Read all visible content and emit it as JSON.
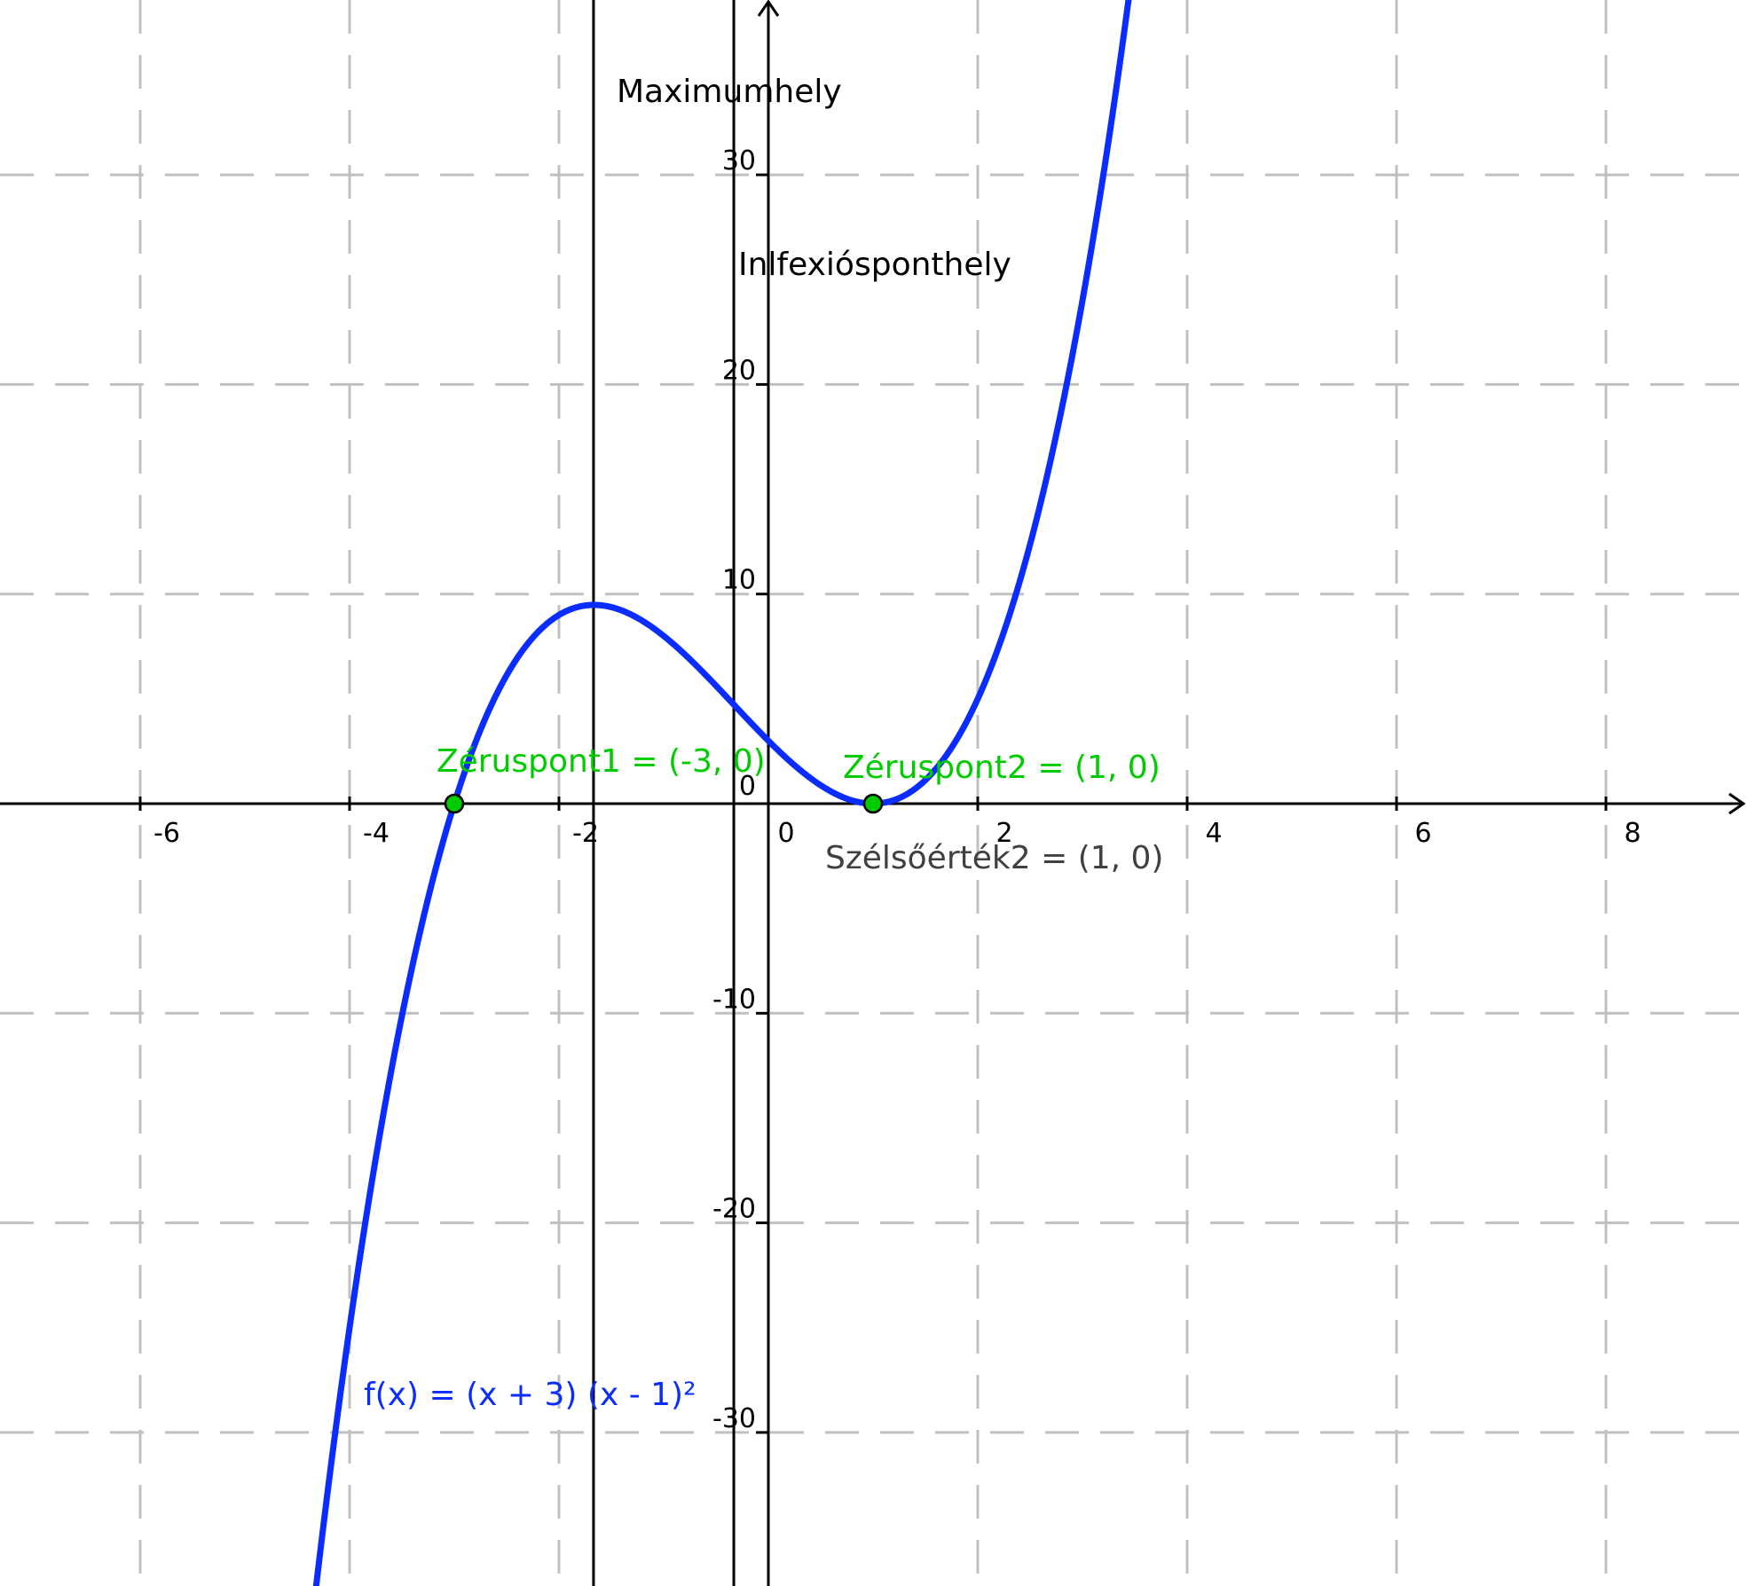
{
  "chart_data": {
    "type": "line",
    "title": "",
    "xlabel": "",
    "ylabel": "",
    "xlim": [
      -7.33,
      9.33
    ],
    "ylim": [
      -37.8,
      37.8
    ],
    "grid": true,
    "x_ticks": [
      -6,
      -4,
      -2,
      0,
      2,
      4,
      6,
      8
    ],
    "y_ticks": [
      -30,
      -20,
      -10,
      0,
      10,
      20,
      30
    ],
    "x_tick_labels": [
      "-6",
      "-4",
      "-2",
      "0",
      "2",
      "4",
      "6",
      "8"
    ],
    "y_tick_labels": [
      "-30",
      "-20",
      "-10",
      "0",
      "10",
      "20",
      "30"
    ],
    "function": {
      "label": "f(x) = (x + 3) (x - 1)²",
      "color": "#0a2cff",
      "x_range": [
        -4.33,
        3.45
      ],
      "sample_step": 0.02
    },
    "vertical_lines": [
      {
        "x": -1.67,
        "label": "Maximumhely",
        "color": "#000000"
      },
      {
        "x": -0.33,
        "label": "Inlfexiósponthely",
        "color": "#000000"
      }
    ],
    "points": [
      {
        "x": -3,
        "y": 0,
        "label": "Zéruspont1 = (-3, 0)",
        "color": "#00cc00"
      },
      {
        "x": 1,
        "y": 0,
        "label": "Zéruspont2 = (1, 0)",
        "color": "#00cc00"
      }
    ],
    "annotations": [
      {
        "text": "Szélsőérték2 = (1, 0)",
        "color": "#404040"
      }
    ],
    "colors": {
      "axis": "#000000",
      "grid": "#c0c0c0"
    }
  }
}
